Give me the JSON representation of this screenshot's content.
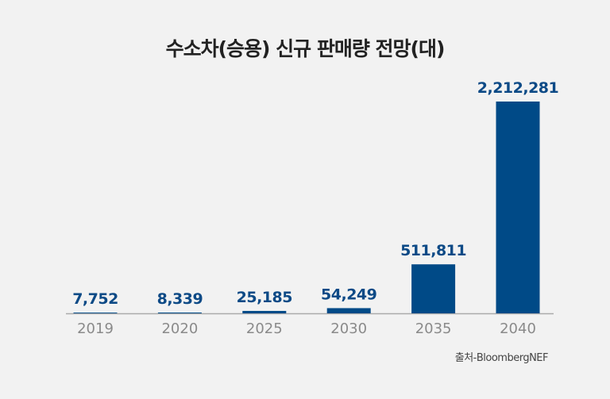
{
  "chart_data": {
    "type": "bar",
    "title": "수소차(승용) 신규 판매량 전망(대)",
    "categories": [
      "2019",
      "2020",
      "2025",
      "2030",
      "2035",
      "2040"
    ],
    "values": [
      7752,
      8339,
      25185,
      54249,
      511811,
      2212281
    ],
    "value_labels": [
      "7,752",
      "8,339",
      "25,185",
      "54,249",
      "511,811",
      "2,212,281"
    ],
    "xlabel": "",
    "ylabel": "",
    "ylim": [
      0,
      2212281
    ],
    "grid": false,
    "source": "출처-BloombergNEF",
    "colors": {
      "bar": "#004a87",
      "value_label": "#0d4a86",
      "tick_label": "#8a8a8a",
      "axis": "#aaaaaa"
    }
  }
}
